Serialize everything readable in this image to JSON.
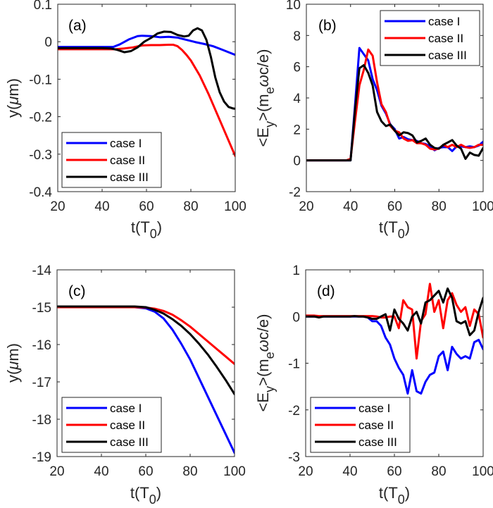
{
  "chart_data": [
    {
      "panel": "a",
      "type": "line",
      "tag": "(a)",
      "xlabel": "t(T0)",
      "xlabel_main": "t(T",
      "xlabel_sub": "0",
      "xlabel_end": ")",
      "ylabel": "y(μm)",
      "xlim": [
        20,
        100
      ],
      "ylim": [
        -0.4,
        0.1
      ],
      "xticks": [
        20,
        40,
        60,
        80,
        100
      ],
      "yticks": [
        -0.4,
        -0.3,
        -0.2,
        -0.1,
        0,
        0.1
      ],
      "ytick_labels": [
        "-0.4",
        "-0.3",
        "-0.2",
        "-0.1",
        "0",
        "0.1"
      ],
      "grid": false,
      "legend_position": "bottom-left",
      "series": [
        {
          "name": "case I",
          "color": "#0000ff",
          "x": [
            20,
            30,
            40,
            45,
            48,
            52,
            56,
            58,
            62,
            66,
            70,
            74,
            78,
            82,
            86,
            90,
            94,
            97,
            100
          ],
          "y": [
            -0.014,
            -0.014,
            -0.014,
            -0.014,
            -0.007,
            0.006,
            0.015,
            0.016,
            0.015,
            0.012,
            0.013,
            0.011,
            0.005,
            -0.001,
            -0.006,
            -0.012,
            -0.021,
            -0.028,
            -0.035
          ]
        },
        {
          "name": "case II",
          "color": "#ff0000",
          "x": [
            20,
            30,
            40,
            46,
            50,
            54,
            58,
            62,
            66,
            70,
            72,
            74,
            76,
            78,
            80,
            84,
            88,
            92,
            96,
            100
          ],
          "y": [
            -0.02,
            -0.02,
            -0.02,
            -0.02,
            -0.018,
            -0.015,
            -0.01,
            -0.009,
            -0.009,
            -0.008,
            -0.008,
            -0.012,
            -0.022,
            -0.035,
            -0.05,
            -0.09,
            -0.14,
            -0.195,
            -0.25,
            -0.305
          ]
        },
        {
          "name": "case III",
          "color": "#000000",
          "x": [
            20,
            30,
            40,
            44,
            47,
            50,
            53,
            56,
            59,
            62,
            65,
            68,
            71,
            74,
            77,
            79,
            81,
            83,
            85,
            87,
            89,
            91,
            93,
            95,
            97,
            99,
            100
          ],
          "y": [
            -0.017,
            -0.017,
            -0.017,
            -0.018,
            -0.022,
            -0.028,
            -0.025,
            -0.015,
            0.0,
            0.01,
            0.022,
            0.027,
            0.026,
            0.018,
            0.014,
            0.016,
            0.03,
            0.036,
            0.03,
            0.005,
            -0.04,
            -0.095,
            -0.135,
            -0.16,
            -0.174,
            -0.178,
            -0.179
          ]
        }
      ]
    },
    {
      "panel": "b",
      "type": "line",
      "tag": "(b)",
      "xlabel": "t(T0)",
      "xlabel_main": "t(T",
      "xlabel_sub": "0",
      "xlabel_end": ")",
      "ylabel": "<Ey>(meωc/e)",
      "xlim": [
        20,
        100
      ],
      "ylim": [
        -2,
        10
      ],
      "xticks": [
        20,
        40,
        60,
        80,
        100
      ],
      "yticks": [
        -2,
        0,
        2,
        4,
        6,
        8,
        10
      ],
      "ytick_labels": [
        "-2",
        "0",
        "2",
        "4",
        "6",
        "8",
        "10"
      ],
      "grid": false,
      "legend_position": "top-right",
      "series": [
        {
          "name": "case I",
          "color": "#0000ff",
          "x": [
            20,
            22,
            24,
            26,
            28,
            30,
            32,
            34,
            36,
            38,
            40,
            42,
            44,
            46,
            48,
            50,
            52,
            54,
            56,
            58,
            60,
            62,
            64,
            66,
            68,
            70,
            72,
            74,
            76,
            78,
            80,
            82,
            84,
            86,
            88,
            90,
            92,
            94,
            96,
            98,
            100
          ],
          "y": [
            0,
            0,
            0,
            0,
            0,
            0,
            0,
            0,
            0,
            0,
            0,
            3.5,
            7.2,
            6.8,
            6.4,
            5.2,
            4.5,
            3.5,
            3.0,
            2.3,
            2.0,
            1.4,
            1.5,
            1.35,
            1.3,
            1.25,
            1.1,
            1.05,
            0.9,
            0.65,
            0.8,
            0.85,
            0.85,
            0.6,
            0.9,
            0.9,
            0.85,
            0.9,
            0.85,
            0.95,
            1.2
          ]
        },
        {
          "name": "case II",
          "color": "#ff0000",
          "x": [
            20,
            22,
            24,
            26,
            28,
            30,
            32,
            34,
            36,
            38,
            40,
            42,
            44,
            46,
            48,
            50,
            52,
            54,
            56,
            58,
            60,
            62,
            64,
            66,
            68,
            70,
            72,
            74,
            76,
            78,
            80,
            82,
            84,
            86,
            88,
            90,
            92,
            94,
            96,
            98,
            100
          ],
          "y": [
            0,
            0,
            0,
            0,
            0,
            0,
            0,
            0,
            0,
            0,
            0.1,
            2.5,
            4.8,
            5.8,
            7.1,
            6.7,
            5.0,
            3.6,
            3.1,
            2.2,
            1.9,
            1.8,
            1.4,
            1.25,
            1.3,
            1.1,
            1.1,
            1.0,
            0.75,
            0.7,
            0.75,
            1.0,
            0.85,
            1.0,
            0.85,
            1.0,
            0.85,
            0.8,
            0.85,
            1.0,
            1.0
          ]
        },
        {
          "name": "case III",
          "color": "#000000",
          "x": [
            20,
            22,
            24,
            26,
            28,
            30,
            32,
            34,
            36,
            38,
            40,
            42,
            44,
            46,
            48,
            50,
            52,
            54,
            56,
            58,
            60,
            62,
            64,
            66,
            68,
            70,
            72,
            74,
            76,
            78,
            80,
            82,
            84,
            86,
            88,
            90,
            92,
            94,
            96,
            98,
            100
          ],
          "y": [
            0,
            0,
            0,
            0,
            0,
            0,
            0,
            0,
            0,
            0,
            0,
            3.2,
            5.9,
            6.1,
            5.6,
            4.8,
            3.1,
            2.5,
            2.2,
            2.3,
            1.9,
            1.6,
            1.8,
            1.75,
            1.6,
            1.15,
            1.25,
            1.4,
            1.0,
            0.8,
            0.75,
            1.0,
            1.15,
            1.3,
            0.95,
            0.75,
            0.1,
            0.5,
            0.35,
            0.3,
            0.8
          ]
        }
      ]
    },
    {
      "panel": "c",
      "type": "line",
      "tag": "(c)",
      "xlabel": "t(T0)",
      "xlabel_main": "t(T",
      "xlabel_sub": "0",
      "xlabel_end": ")",
      "ylabel": "y(μm)",
      "xlim": [
        20,
        100
      ],
      "ylim": [
        -19,
        -14
      ],
      "xticks": [
        20,
        40,
        60,
        80,
        100
      ],
      "yticks": [
        -19,
        -18,
        -17,
        -16,
        -15,
        -14
      ],
      "ytick_labels": [
        "-19",
        "-18",
        "-17",
        "-16",
        "-15",
        "-14"
      ],
      "grid": false,
      "legend_position": "bottom-left",
      "series": [
        {
          "name": "case I",
          "color": "#0000ff",
          "x": [
            20,
            30,
            40,
            50,
            55,
            60,
            64,
            68,
            72,
            76,
            80,
            84,
            88,
            92,
            96,
            100
          ],
          "y": [
            -15.0,
            -15.0,
            -15.0,
            -15.0,
            -15.0,
            -15.03,
            -15.12,
            -15.3,
            -15.6,
            -15.98,
            -16.4,
            -16.9,
            -17.4,
            -17.9,
            -18.4,
            -18.9
          ]
        },
        {
          "name": "case II",
          "color": "#ff0000",
          "x": [
            20,
            30,
            40,
            50,
            55,
            60,
            64,
            68,
            72,
            76,
            80,
            84,
            88,
            92,
            96,
            100
          ],
          "y": [
            -15.0,
            -15.0,
            -15.0,
            -15.0,
            -15.0,
            -15.01,
            -15.04,
            -15.1,
            -15.2,
            -15.35,
            -15.52,
            -15.72,
            -15.92,
            -16.12,
            -16.32,
            -16.52
          ]
        },
        {
          "name": "case III",
          "color": "#000000",
          "x": [
            20,
            30,
            40,
            50,
            55,
            60,
            64,
            68,
            72,
            76,
            80,
            84,
            88,
            92,
            96,
            100
          ],
          "y": [
            -14.98,
            -14.98,
            -14.98,
            -14.98,
            -14.98,
            -15.0,
            -15.07,
            -15.17,
            -15.32,
            -15.5,
            -15.72,
            -15.98,
            -16.27,
            -16.6,
            -16.95,
            -17.33
          ]
        }
      ]
    },
    {
      "panel": "d",
      "type": "line",
      "tag": "(d)",
      "xlabel": "t(T0)",
      "xlabel_main": "t(T",
      "xlabel_sub": "0",
      "xlabel_end": ")",
      "ylabel": "<Ey>(meωc/e)",
      "xlim": [
        20,
        100
      ],
      "ylim": [
        -3,
        1
      ],
      "xticks": [
        20,
        40,
        60,
        80,
        100
      ],
      "yticks": [
        -3,
        -2,
        -1,
        0,
        1
      ],
      "ytick_labels": [
        "-3",
        "-2",
        "-1",
        "0",
        "1"
      ],
      "grid": false,
      "legend_position": "bottom-left",
      "series": [
        {
          "name": "case I",
          "color": "#0000ff",
          "x": [
            20,
            22,
            24,
            26,
            28,
            30,
            32,
            34,
            36,
            38,
            40,
            42,
            44,
            46,
            48,
            50,
            52,
            54,
            56,
            58,
            60,
            62,
            64,
            66,
            68,
            70,
            72,
            74,
            76,
            78,
            80,
            82,
            84,
            86,
            88,
            90,
            92,
            94,
            96,
            98,
            100
          ],
          "y": [
            0,
            0,
            0,
            0,
            0,
            0,
            0,
            0,
            0,
            0,
            0,
            0,
            0,
            0,
            -0.02,
            -0.1,
            -0.1,
            -0.2,
            -0.45,
            -0.6,
            -0.9,
            -1.1,
            -1.25,
            -1.65,
            -1.15,
            -1.6,
            -1.65,
            -1.4,
            -1.25,
            -1.2,
            -0.85,
            -0.75,
            -1.15,
            -0.65,
            -0.8,
            -0.9,
            -0.85,
            -0.9,
            -0.55,
            -0.5,
            -0.7
          ]
        },
        {
          "name": "case II",
          "color": "#ff0000",
          "x": [
            20,
            22,
            24,
            26,
            28,
            30,
            32,
            34,
            36,
            38,
            40,
            42,
            44,
            46,
            48,
            50,
            52,
            54,
            56,
            58,
            60,
            62,
            64,
            66,
            68,
            70,
            72,
            74,
            76,
            78,
            80,
            82,
            84,
            86,
            88,
            90,
            92,
            94,
            96,
            98,
            100
          ],
          "y": [
            0.02,
            0.02,
            0.02,
            0.01,
            0.01,
            0.01,
            0.01,
            0.01,
            0.01,
            0.01,
            0.01,
            0.01,
            0.01,
            0.01,
            0.01,
            0.01,
            0.0,
            -0.02,
            -0.02,
            0.0,
            0.0,
            -0.25,
            0.35,
            0.2,
            0.15,
            -0.9,
            -0.1,
            0.05,
            0.7,
            0.1,
            0.35,
            -0.25,
            0.35,
            0.5,
            0.25,
            0.1,
            0.2,
            -0.2,
            0.15,
            0.05,
            -0.45
          ]
        },
        {
          "name": "case III",
          "color": "#000000",
          "x": [
            20,
            22,
            24,
            26,
            28,
            30,
            32,
            34,
            36,
            38,
            40,
            42,
            44,
            46,
            48,
            50,
            52,
            54,
            56,
            58,
            60,
            62,
            64,
            66,
            68,
            70,
            72,
            74,
            76,
            78,
            80,
            82,
            84,
            86,
            88,
            90,
            92,
            94,
            96,
            98,
            100
          ],
          "y": [
            0,
            0,
            0,
            -0.02,
            0,
            0,
            0,
            0,
            0,
            0,
            0,
            0.01,
            0,
            0,
            -0.02,
            -0.05,
            -0.05,
            0,
            0.05,
            -0.3,
            0.15,
            -0.05,
            -0.15,
            -0.3,
            0,
            0.1,
            -0.15,
            0.3,
            0.35,
            0.45,
            0.55,
            0.3,
            0.6,
            0.4,
            -0.1,
            -0.15,
            -0.1,
            -0.4,
            -0.3,
            0.1,
            0.4
          ]
        }
      ]
    }
  ]
}
